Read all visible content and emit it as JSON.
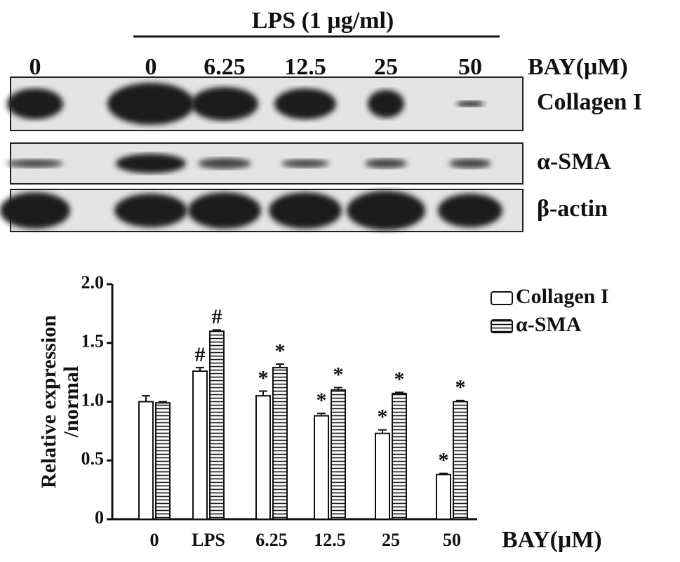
{
  "blot": {
    "header": "LPS (1 μg/ml)",
    "lanes": [
      "0",
      "0",
      "6.25",
      "12.5",
      "25",
      "50"
    ],
    "unit": "BAY(μM)",
    "rows": [
      "Collagen I",
      "α-SMA",
      "β-actin"
    ]
  },
  "chart_data": {
    "type": "bar",
    "categories": [
      "0",
      "LPS",
      "6.25",
      "12.5",
      "25",
      "50"
    ],
    "x_label": "BAY(μM)",
    "y_label": [
      "Relative expression",
      "/normal"
    ],
    "ylim": [
      0,
      2
    ],
    "yticks": [
      0,
      0.5,
      {
        "value": 1,
        "label": "1.0"
      },
      1.5,
      {
        "value": 2,
        "label": "2.0"
      }
    ],
    "series": [
      {
        "name": "Collagen I",
        "color": "#ffffff",
        "values": [
          1.0,
          1.26,
          1.05,
          0.88,
          0.73,
          0.38
        ],
        "errors": [
          0.05,
          0.03,
          0.04,
          0.02,
          0.03,
          0.01
        ],
        "annotations": [
          null,
          "#",
          "*",
          "*",
          "*",
          "*"
        ]
      },
      {
        "name": "α-SMA",
        "color": "striped",
        "values": [
          0.99,
          1.6,
          1.29,
          1.1,
          1.07,
          1.0
        ],
        "errors": [
          0.01,
          0.01,
          0.03,
          0.02,
          0.01,
          0.01
        ],
        "annotations": [
          null,
          "#",
          "*",
          "*",
          "*",
          "*"
        ]
      }
    ]
  }
}
